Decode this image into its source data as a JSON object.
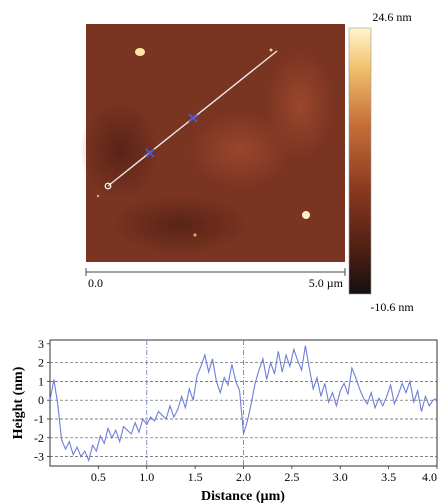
{
  "afm_image": {
    "scan_width_label": "5.0 µm",
    "scan_origin_label": "0.0",
    "colorbar_max": "24.6 nm",
    "colorbar_min": "-10.6 nm",
    "colorbar_colors": [
      "#fff6cc",
      "#f1c16e",
      "#c8733a",
      "#8c3a20",
      "#4a1d12",
      "#111111"
    ],
    "image_base_color": "#7a3422"
  },
  "chart_data": {
    "type": "line",
    "xlabel": "Distance (µm)",
    "ylabel": "Height (nm)",
    "xlim": [
      0,
      4.0
    ],
    "ylim": [
      -3.5,
      3.2
    ],
    "x_ticks": [
      0.5,
      1.0,
      1.5,
      2.0,
      2.5,
      3.0,
      3.5,
      4.0
    ],
    "x_tick_labels": [
      "0.5",
      "1.0",
      "1.5",
      "2.0",
      "2.5",
      "3.0",
      "3.5",
      "4.0"
    ],
    "y_ticks": [
      3,
      2,
      1,
      0,
      -1,
      -2,
      -3
    ],
    "y_tick_labels": [
      "3",
      "2",
      "1",
      "0",
      "-1",
      "-2",
      "-3"
    ],
    "horizontal_dashed_gridlines": [
      2,
      1,
      0,
      -1,
      -2,
      -3
    ],
    "vertical_marker_lines": [
      1.0,
      2.0
    ],
    "line_color": "#6f7fd6",
    "series": [
      {
        "x": [
          0.0,
          0.04,
          0.08,
          0.12,
          0.16,
          0.2,
          0.24,
          0.28,
          0.32,
          0.36,
          0.4,
          0.44,
          0.48,
          0.52,
          0.56,
          0.6,
          0.64,
          0.68,
          0.72,
          0.76,
          0.8,
          0.84,
          0.88,
          0.92,
          0.96,
          1.0,
          1.04,
          1.08,
          1.12,
          1.16,
          1.2,
          1.24,
          1.28,
          1.32,
          1.36,
          1.4,
          1.44,
          1.48,
          1.52,
          1.56,
          1.6,
          1.64,
          1.68,
          1.72,
          1.76,
          1.8,
          1.84,
          1.88,
          1.92,
          1.96,
          2.0,
          2.04,
          2.08,
          2.12,
          2.16,
          2.2,
          2.24,
          2.28,
          2.32,
          2.36,
          2.4,
          2.44,
          2.48,
          2.52,
          2.56,
          2.6,
          2.64,
          2.68,
          2.72,
          2.76,
          2.8,
          2.84,
          2.88,
          2.92,
          2.96,
          3.0,
          3.04,
          3.08,
          3.12,
          3.16,
          3.2,
          3.24,
          3.28,
          3.32,
          3.36,
          3.4,
          3.44,
          3.48,
          3.52,
          3.56,
          3.6,
          3.64,
          3.68,
          3.72,
          3.76,
          3.8,
          3.84,
          3.88,
          3.92,
          3.96,
          4.0
        ],
        "y": [
          0.0,
          1.1,
          -0.2,
          -2.1,
          -2.6,
          -2.2,
          -2.9,
          -2.5,
          -3.0,
          -2.7,
          -3.2,
          -2.4,
          -2.7,
          -1.9,
          -2.3,
          -1.5,
          -2.0,
          -1.6,
          -2.2,
          -1.4,
          -1.6,
          -1.8,
          -1.2,
          -1.7,
          -1.0,
          -1.3,
          -0.9,
          -1.1,
          -0.6,
          -0.8,
          -1.0,
          -0.3,
          -0.9,
          -0.5,
          0.2,
          -0.4,
          0.6,
          0.0,
          1.3,
          1.8,
          2.4,
          1.5,
          2.2,
          1.0,
          0.4,
          1.2,
          0.8,
          1.9,
          1.0,
          0.5,
          -1.8,
          -1.1,
          -0.2,
          0.9,
          1.6,
          2.2,
          1.1,
          2.0,
          1.4,
          2.6,
          1.5,
          2.4,
          1.8,
          2.7,
          2.1,
          1.6,
          2.9,
          1.7,
          0.6,
          1.2,
          0.2,
          0.9,
          -0.1,
          0.4,
          -0.3,
          0.5,
          0.9,
          0.3,
          1.7,
          1.2,
          0.6,
          0.1,
          -0.2,
          0.4,
          -0.4,
          0.1,
          -0.3,
          0.2,
          0.8,
          -0.2,
          0.3,
          0.9,
          0.4,
          1.0,
          -0.1,
          0.5,
          -0.6,
          0.2,
          -0.3,
          0.0,
          0.1
        ]
      }
    ]
  }
}
